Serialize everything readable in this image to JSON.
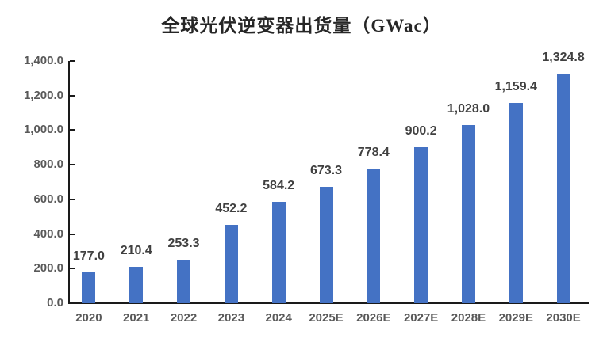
{
  "chart_data": {
    "type": "bar",
    "title": "全球光伏逆变器出货量（GWac）",
    "xlabel": "",
    "ylabel": "",
    "categories": [
      "2020",
      "2021",
      "2022",
      "2023",
      "2024",
      "2025E",
      "2026E",
      "2027E",
      "2028E",
      "2029E",
      "2030E"
    ],
    "values": [
      177.0,
      210.4,
      253.3,
      452.2,
      584.2,
      673.3,
      778.4,
      900.2,
      1028.0,
      1159.4,
      1324.8
    ],
    "data_labels": [
      "177.0",
      "210.4",
      "253.3",
      "452.2",
      "584.2",
      "673.3",
      "778.4",
      "900.2",
      "1,028.0",
      "1,159.4",
      "1,324.8"
    ],
    "y_ticks": [
      {
        "value": 0,
        "label": "0.0"
      },
      {
        "value": 200,
        "label": "200.0"
      },
      {
        "value": 400,
        "label": "400.0"
      },
      {
        "value": 600,
        "label": "600.0"
      },
      {
        "value": 800,
        "label": "800.0"
      },
      {
        "value": 1000,
        "label": "1,000.0"
      },
      {
        "value": 1200,
        "label": "1,200.0"
      },
      {
        "value": 1400,
        "label": "1,400.0"
      }
    ],
    "ylim": [
      0,
      1400
    ],
    "grid": false,
    "legend": "none",
    "colors": {
      "bar": "#4472C4",
      "axis": "#1A1A1A",
      "data_label": "#404040",
      "tick_label": "#595959",
      "title": "#262626",
      "background": "#FFFFFF"
    }
  }
}
